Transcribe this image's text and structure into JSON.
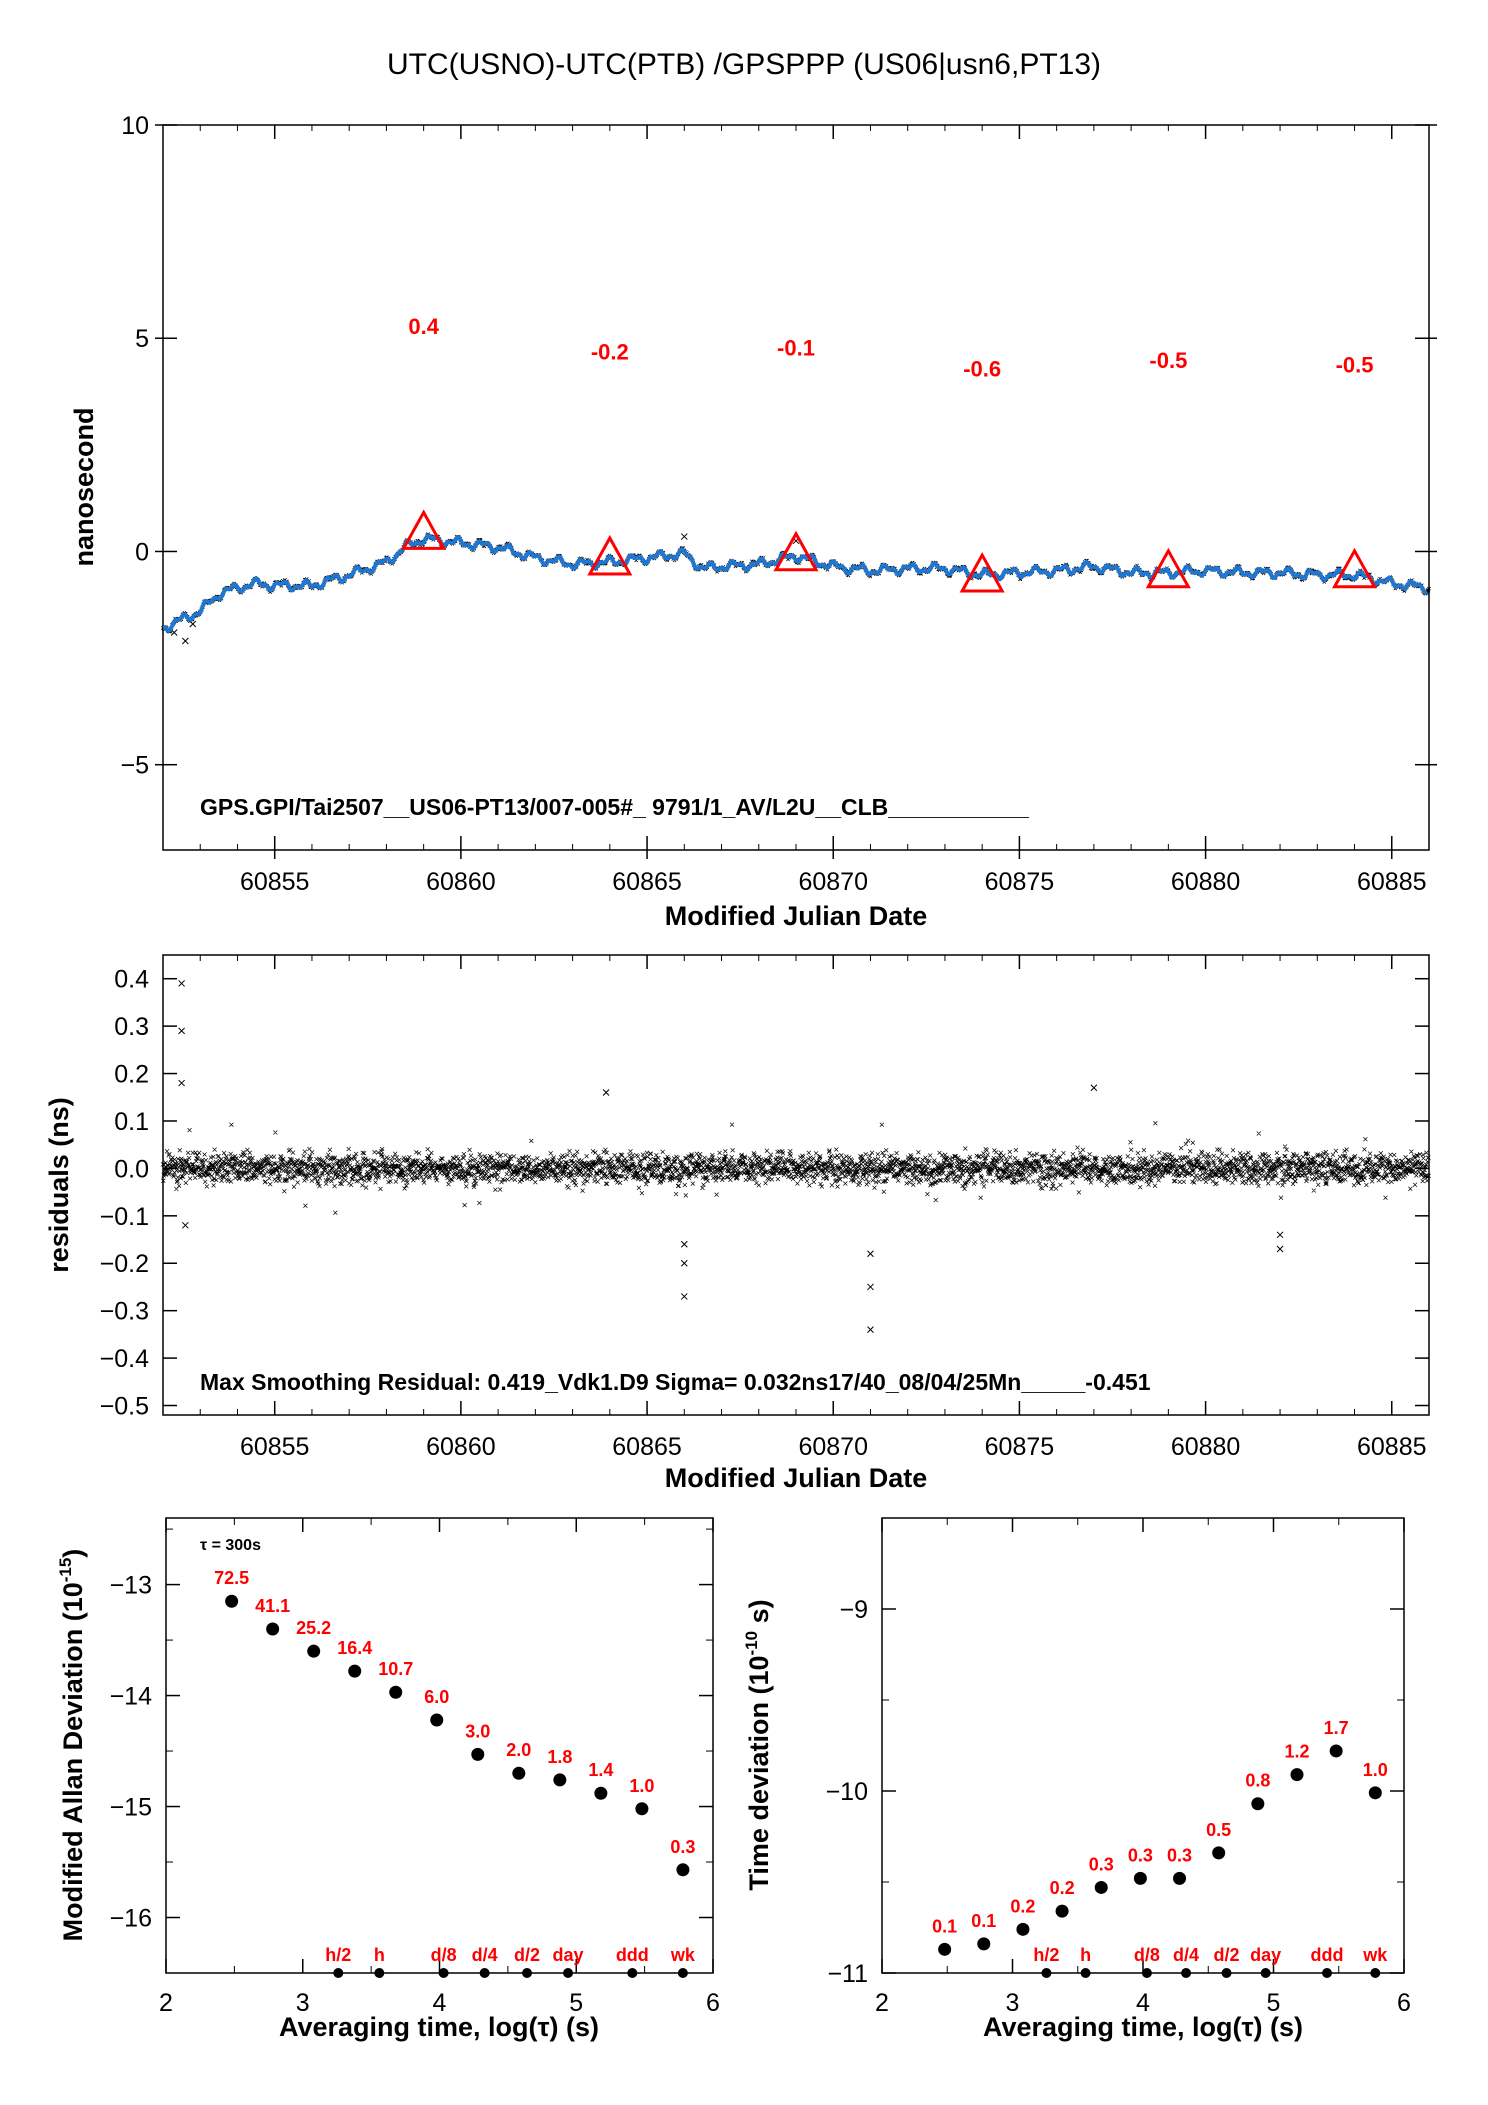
{
  "title": "UTC(USNO)-UTC(PTB)  /GPSPPP  (US06|usn6,PT13)",
  "colors": {
    "series": "#1f77d4",
    "points": "#000000",
    "accent": "#ff0000"
  },
  "chart_data": [
    {
      "type": "line",
      "ylabel": "nanosecond",
      "xlabel": "Modified Julian Date",
      "xlim": [
        60852.0,
        60886.0
      ],
      "ylim": [
        -7,
        10
      ],
      "xticks": [
        "60855",
        "60860",
        "60865",
        "60870",
        "60875",
        "60880",
        "60885"
      ],
      "yticks": [
        "10",
        "5",
        "0",
        "−5"
      ],
      "curve": {
        "x": [
          60852.0,
          60852.5,
          60853.0,
          60853.5,
          60854.0,
          60854.5,
          60855.0,
          60856.0,
          60857.0,
          60858.0,
          60858.5,
          60859.0,
          60859.5,
          60860.0,
          60861.0,
          60862.0,
          60863.0,
          60864.0,
          60865.0,
          60866.0,
          60866.5,
          60867.0,
          60868.0,
          60869.0,
          60870.0,
          60871.0,
          60872.0,
          60873.0,
          60874.0,
          60875.0,
          60876.0,
          60877.0,
          60878.0,
          60879.0,
          60880.0,
          60881.0,
          60882.0,
          60883.0,
          60884.0,
          60885.0,
          60886.0
        ],
        "y": [
          -1.8,
          -1.6,
          -1.4,
          -1.0,
          -0.85,
          -0.75,
          -0.8,
          -0.8,
          -0.55,
          -0.25,
          0.1,
          0.3,
          0.25,
          0.2,
          0.1,
          -0.15,
          -0.3,
          -0.25,
          -0.15,
          -0.05,
          -0.4,
          -0.35,
          -0.3,
          -0.1,
          -0.35,
          -0.45,
          -0.4,
          -0.4,
          -0.55,
          -0.5,
          -0.45,
          -0.35,
          -0.5,
          -0.5,
          -0.45,
          -0.5,
          -0.5,
          -0.55,
          -0.55,
          -0.75,
          -0.85
        ]
      },
      "triangles": {
        "x": [
          60859,
          60864,
          60869,
          60874,
          60879,
          60884
        ],
        "y": [
          0.4,
          -0.2,
          -0.1,
          -0.6,
          -0.5,
          -0.5
        ]
      },
      "annotations": [
        "0.4",
        "-0.2",
        "-0.1",
        "-0.6",
        "-0.5",
        "-0.5"
      ],
      "annotation_y": [
        5.1,
        4.5,
        4.6,
        4.1,
        4.3,
        4.2
      ],
      "note": "GPS.GPI/Tai2507__US06-PT13/007-005#_  9791/1_AV/L2U__CLB___________"
    },
    {
      "type": "scatter",
      "ylabel": "residuals (ns)",
      "xlabel": "Modified Julian Date",
      "xlim": [
        60852.0,
        60886.0
      ],
      "ylim": [
        -0.52,
        0.45
      ],
      "xticks": [
        "60855",
        "60860",
        "60865",
        "60870",
        "60875",
        "60880",
        "60885"
      ],
      "yticks": [
        "0.4",
        "0.3",
        "0.2",
        "0.1",
        "0.0",
        "−0.1",
        "−0.2",
        "−0.3",
        "−0.4",
        "−0.5"
      ],
      "outliers": {
        "x": [
          60852.5,
          60852.5,
          60852.5,
          60852.6,
          60863.9,
          60866.0,
          60866.0,
          60866.0,
          60871.0,
          60871.0,
          60871.0,
          60877.0,
          60882.0,
          60882.0
        ],
        "y": [
          0.39,
          0.29,
          0.18,
          -0.12,
          0.16,
          -0.16,
          -0.2,
          -0.27,
          -0.18,
          -0.25,
          -0.34,
          0.17,
          -0.14,
          -0.17
        ]
      },
      "note": "Max Smoothing Residual: 0.419_Vdk1.D9  Sigma= 0.032ns17/40_08/04/25Mn_____-0.451"
    },
    {
      "type": "scatter",
      "ylabel": "Modified Allan Deviation (10",
      "ylabel_exp": "-15",
      "ylabel_end": ")",
      "xlabel": "Averaging time, log(τ) (s)",
      "xlim": [
        2,
        6
      ],
      "ylim": [
        -16.5,
        -12.4
      ],
      "xticks": [
        "2",
        "3",
        "4",
        "5",
        "6"
      ],
      "yticks": [
        "−13",
        "−14",
        "−15",
        "−16"
      ],
      "tau_note": "τ = 300s",
      "x": [
        2.48,
        2.78,
        3.08,
        3.38,
        3.68,
        3.98,
        4.28,
        4.58,
        4.88,
        5.18,
        5.48,
        5.78
      ],
      "y": [
        -13.15,
        -13.4,
        -13.6,
        -13.78,
        -13.97,
        -14.22,
        -14.53,
        -14.7,
        -14.76,
        -14.88,
        -15.02,
        -15.57
      ],
      "labels": [
        "72.5",
        "41.1",
        "25.2",
        "16.4",
        "10.7",
        "6.0",
        "3.0",
        "2.0",
        "1.8",
        "1.4",
        "1.0",
        "0.3"
      ],
      "markers": [
        "h/2",
        "h",
        "d/8",
        "d/4",
        "d/2",
        "day",
        "ddd",
        "wk"
      ],
      "marker_x": [
        3.26,
        3.56,
        4.03,
        4.33,
        4.64,
        4.94,
        5.41,
        5.78
      ]
    },
    {
      "type": "scatter",
      "ylabel": "Time deviation (10",
      "ylabel_exp": "-10",
      "ylabel_end": " s)",
      "xlabel": "Averaging time, log(τ) (s)",
      "xlim": [
        2,
        6
      ],
      "ylim": [
        -11.0,
        -8.5
      ],
      "xticks": [
        "2",
        "3",
        "4",
        "5",
        "6"
      ],
      "yticks": [
        "−9",
        "−10",
        "−11"
      ],
      "x": [
        2.48,
        2.78,
        3.08,
        3.38,
        3.68,
        3.98,
        4.28,
        4.58,
        4.88,
        5.18,
        5.48,
        5.78
      ],
      "y": [
        -10.87,
        -10.84,
        -10.76,
        -10.66,
        -10.53,
        -10.48,
        -10.48,
        -10.34,
        -10.07,
        -9.91,
        -9.78,
        -10.01
      ],
      "labels": [
        "0.1",
        "0.1",
        "0.2",
        "0.2",
        "0.3",
        "0.3",
        "0.3",
        "0.5",
        "0.8",
        "1.2",
        "1.7",
        "1.0"
      ],
      "markers": [
        "h/2",
        "h",
        "d/8",
        "d/4",
        "d/2",
        "day",
        "ddd",
        "wk"
      ],
      "marker_x": [
        3.26,
        3.56,
        4.03,
        4.33,
        4.64,
        4.94,
        5.41,
        5.78
      ]
    }
  ]
}
